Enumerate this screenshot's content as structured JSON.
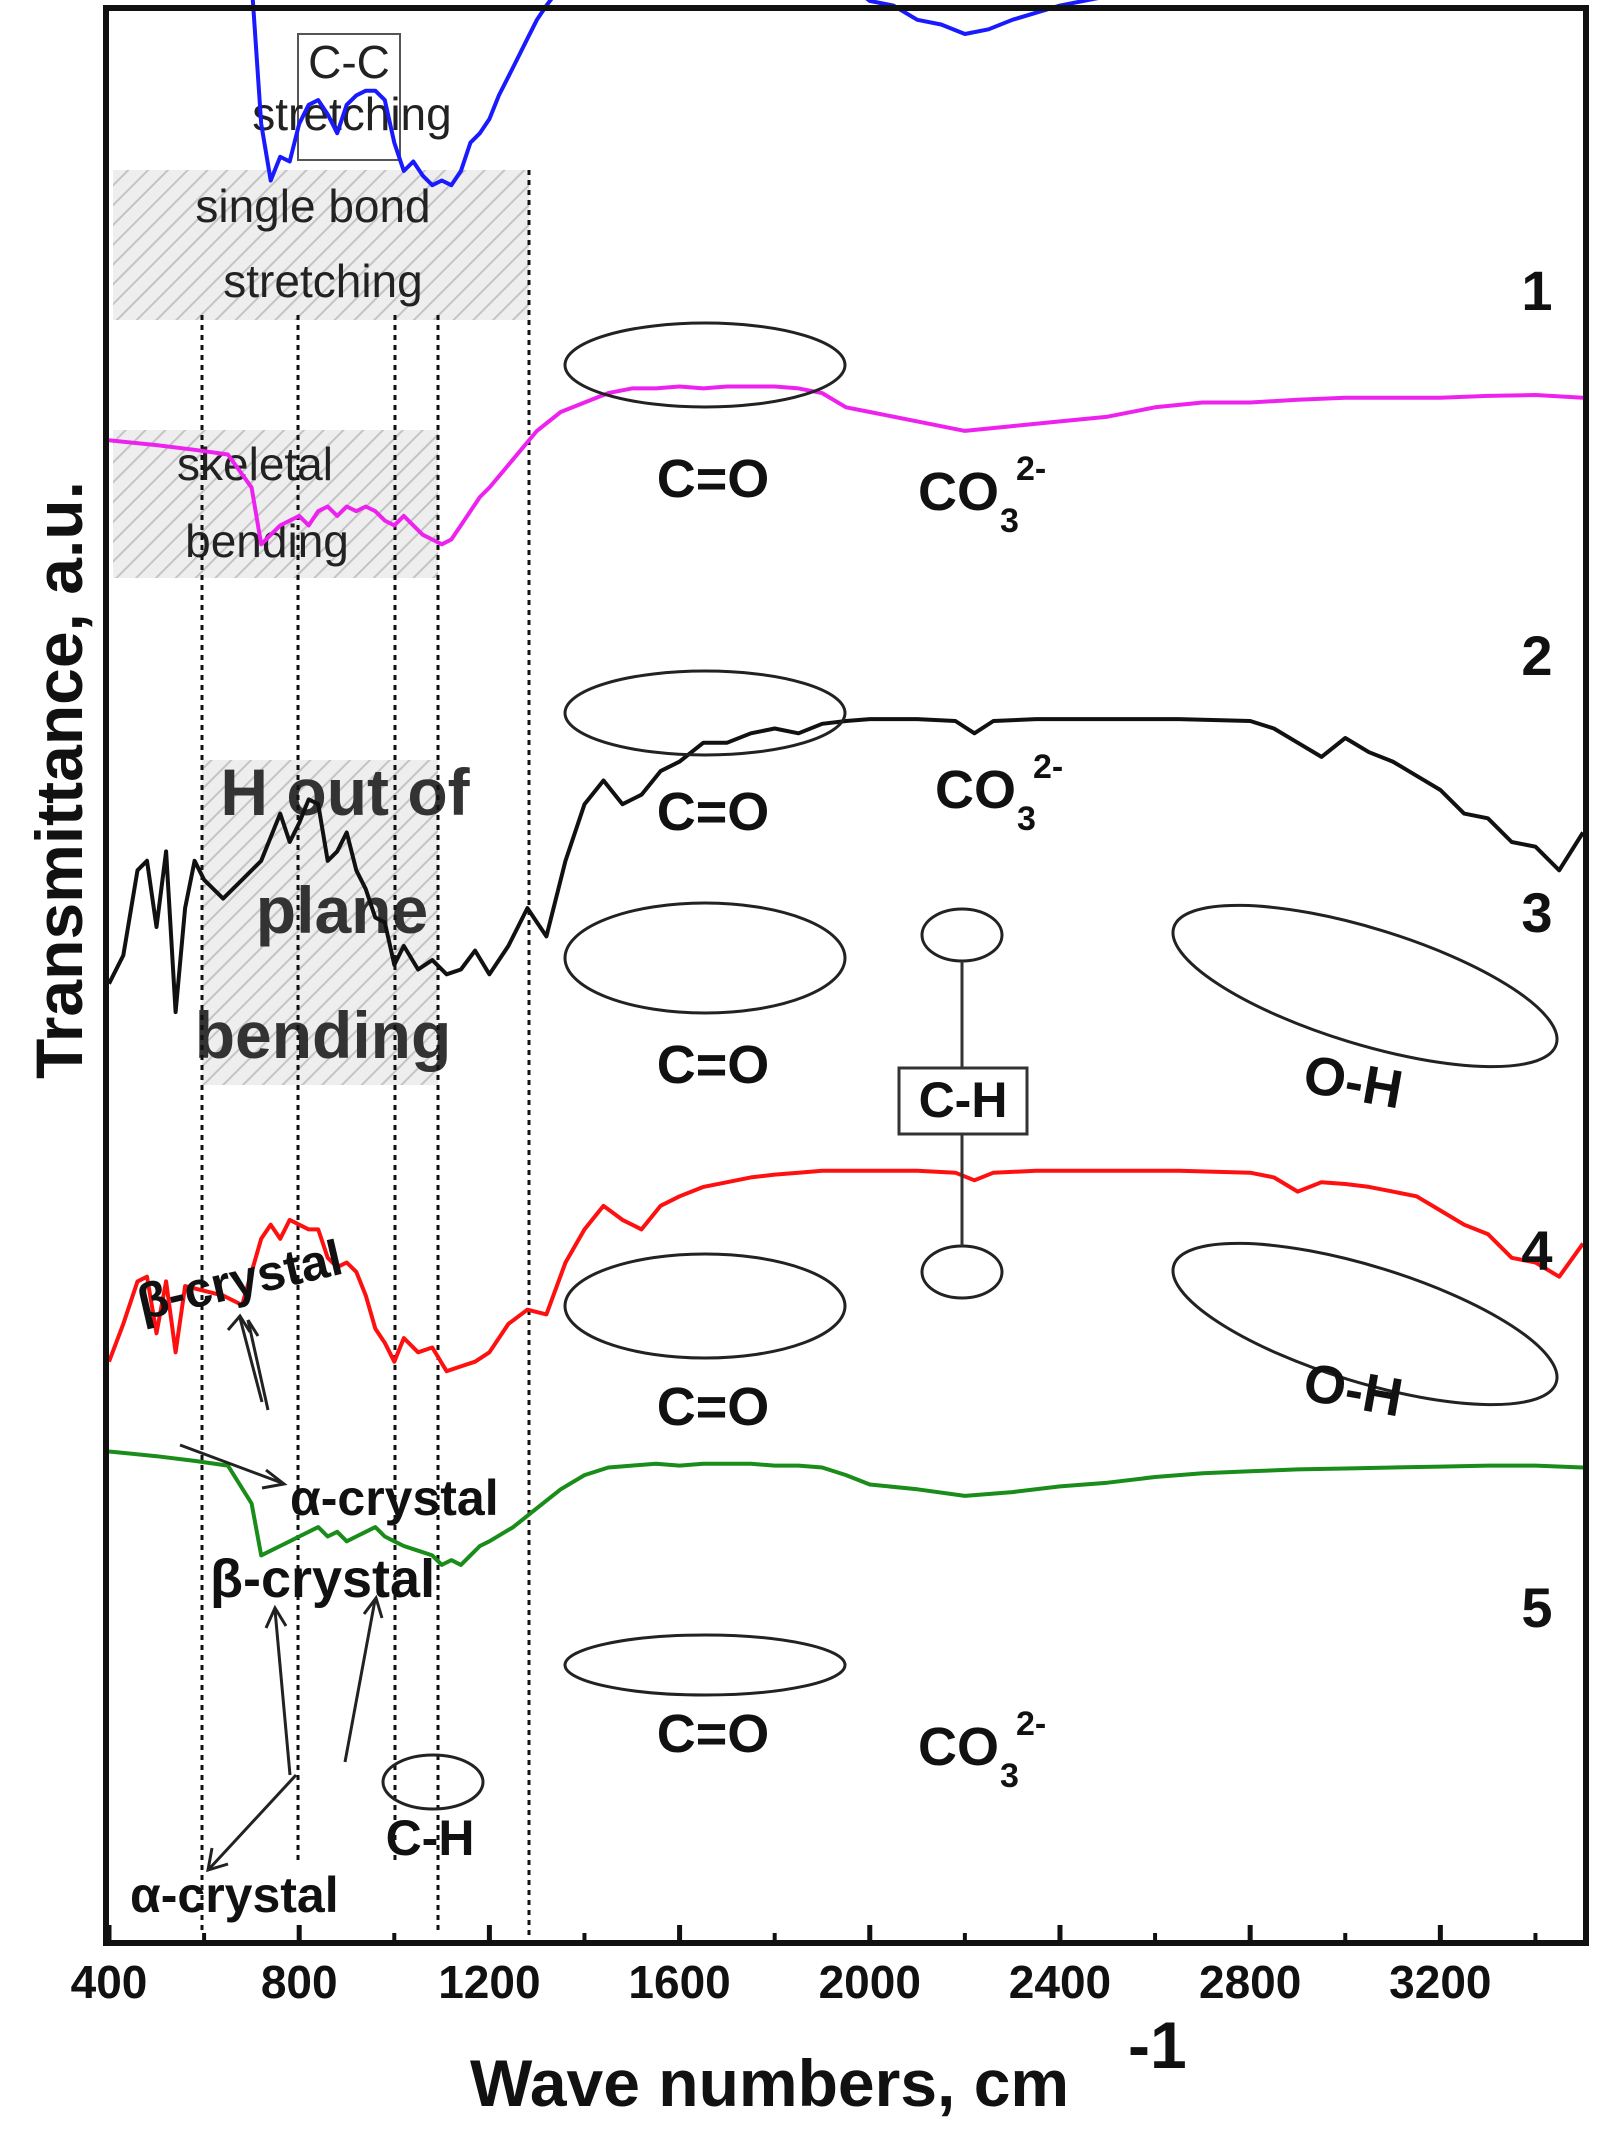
{
  "chart_data": {
    "type": "line",
    "xlabel": "Wave numbers, cm",
    "xlabel_sup": "-1",
    "ylabel": "Transmittance, a.u.",
    "xlim": [
      400,
      3500
    ],
    "x_ticks": [
      400,
      800,
      1200,
      1600,
      2000,
      2400,
      2800,
      3200
    ],
    "y_ticks_shown": false,
    "grid": false,
    "legend": "none",
    "series": [
      {
        "name": "1",
        "color": "#1a1aff",
        "x": [
          400,
          500,
          580,
          650,
          700,
          720,
          740,
          760,
          780,
          800,
          820,
          840,
          860,
          880,
          900,
          920,
          940,
          960,
          980,
          1000,
          1020,
          1040,
          1060,
          1080,
          1100,
          1120,
          1140,
          1160,
          1180,
          1200,
          1220,
          1250,
          1280,
          1300,
          1320,
          1350,
          1380,
          1400,
          1450,
          1500,
          1550,
          1600,
          1650,
          1700,
          1750,
          1800,
          1850,
          1900,
          1950,
          2000,
          2050,
          2100,
          2150,
          2200,
          2250,
          2300,
          2400,
          2500,
          2600,
          2700,
          2800,
          2900,
          3000,
          3100,
          3200,
          3300,
          3400,
          3500
        ],
        "y": [
          4.6,
          4.5,
          4.45,
          4.4,
          4.0,
          2.5,
          1.9,
          2.15,
          2.1,
          2.5,
          2.7,
          2.75,
          2.6,
          2.4,
          2.7,
          2.8,
          2.85,
          2.85,
          2.75,
          2.3,
          2.0,
          2.1,
          1.95,
          1.85,
          1.9,
          1.85,
          2.0,
          2.3,
          2.4,
          2.55,
          2.8,
          3.1,
          3.4,
          3.6,
          3.75,
          3.95,
          4.1,
          4.2,
          4.25,
          4.2,
          4.25,
          4.25,
          4.2,
          4.25,
          4.25,
          4.25,
          4.2,
          4.15,
          4.0,
          3.8,
          3.75,
          3.6,
          3.55,
          3.45,
          3.5,
          3.6,
          3.75,
          3.85,
          4.05,
          4.2,
          4.25,
          4.28,
          4.3,
          4.32,
          4.35,
          4.4,
          4.38,
          4.35
        ]
      },
      {
        "name": "2",
        "color": "#ee22ee",
        "x": [
          400,
          500,
          580,
          650,
          700,
          720,
          740,
          760,
          780,
          800,
          820,
          840,
          860,
          880,
          900,
          920,
          940,
          960,
          980,
          1000,
          1020,
          1040,
          1060,
          1080,
          1100,
          1120,
          1140,
          1160,
          1180,
          1200,
          1250,
          1300,
          1350,
          1400,
          1450,
          1500,
          1550,
          1600,
          1650,
          1700,
          1750,
          1800,
          1850,
          1900,
          1950,
          2000,
          2100,
          2200,
          2300,
          2400,
          2500,
          2600,
          2700,
          2800,
          2900,
          3000,
          3100,
          3200,
          3300,
          3400,
          3500
        ],
        "y": [
          -0.85,
          -0.9,
          -0.95,
          -1.0,
          -1.35,
          -1.95,
          -1.85,
          -1.75,
          -1.7,
          -1.65,
          -1.75,
          -1.6,
          -1.55,
          -1.65,
          -1.55,
          -1.6,
          -1.55,
          -1.6,
          -1.7,
          -1.75,
          -1.65,
          -1.75,
          -1.85,
          -1.9,
          -1.95,
          -1.9,
          -1.75,
          -1.6,
          -1.45,
          -1.35,
          -1.05,
          -0.75,
          -0.55,
          -0.45,
          -0.35,
          -0.3,
          -0.3,
          -0.28,
          -0.3,
          -0.28,
          -0.28,
          -0.28,
          -0.3,
          -0.35,
          -0.5,
          -0.55,
          -0.65,
          -0.75,
          -0.7,
          -0.65,
          -0.6,
          -0.5,
          -0.45,
          -0.45,
          -0.42,
          -0.4,
          -0.4,
          -0.4,
          -0.38,
          -0.37,
          -0.4
        ]
      },
      {
        "name": "3",
        "color": "#111111",
        "x": [
          400,
          430,
          460,
          480,
          500,
          520,
          540,
          560,
          580,
          600,
          640,
          680,
          720,
          760,
          780,
          800,
          820,
          840,
          860,
          880,
          900,
          920,
          940,
          960,
          980,
          1000,
          1020,
          1050,
          1080,
          1110,
          1140,
          1170,
          1200,
          1240,
          1280,
          1320,
          1360,
          1400,
          1440,
          1480,
          1520,
          1560,
          1600,
          1650,
          1700,
          1750,
          1800,
          1850,
          1900,
          1950,
          2000,
          2100,
          2180,
          2220,
          2260,
          2350,
          2500,
          2650,
          2800,
          2850,
          2900,
          2950,
          3000,
          3050,
          3100,
          3150,
          3200,
          3250,
          3300,
          3350,
          3400,
          3450,
          3500
        ],
        "y": [
          -6.6,
          -6.3,
          -5.4,
          -5.3,
          -6.0,
          -5.2,
          -6.9,
          -5.8,
          -5.3,
          -5.5,
          -5.7,
          -5.5,
          -5.3,
          -4.8,
          -5.1,
          -4.9,
          -4.65,
          -4.7,
          -5.3,
          -5.2,
          -5.0,
          -5.4,
          -5.6,
          -5.9,
          -5.95,
          -6.4,
          -6.2,
          -6.45,
          -6.35,
          -6.5,
          -6.45,
          -6.25,
          -6.5,
          -6.2,
          -5.8,
          -6.1,
          -5.3,
          -4.7,
          -4.45,
          -4.7,
          -4.6,
          -4.35,
          -4.25,
          -4.05,
          -4.05,
          -3.95,
          -3.9,
          -3.95,
          -3.85,
          -3.82,
          -3.8,
          -3.8,
          -3.82,
          -3.95,
          -3.82,
          -3.8,
          -3.8,
          -3.8,
          -3.82,
          -3.9,
          -4.05,
          -4.2,
          -4.0,
          -4.15,
          -4.25,
          -4.4,
          -4.55,
          -4.8,
          -4.85,
          -5.1,
          -5.15,
          -5.4,
          -5.0
        ]
      },
      {
        "name": "4",
        "color": "#ff1010",
        "x": [
          400,
          430,
          460,
          480,
          500,
          520,
          540,
          560,
          600,
          640,
          680,
          720,
          740,
          760,
          780,
          800,
          820,
          840,
          860,
          880,
          900,
          920,
          940,
          960,
          980,
          1000,
          1020,
          1050,
          1080,
          1110,
          1140,
          1170,
          1200,
          1240,
          1280,
          1320,
          1360,
          1400,
          1440,
          1480,
          1520,
          1560,
          1600,
          1650,
          1700,
          1750,
          1800,
          1850,
          1900,
          1950,
          2000,
          2100,
          2180,
          2220,
          2260,
          2350,
          2500,
          2650,
          2800,
          2850,
          2900,
          2950,
          3000,
          3050,
          3100,
          3150,
          3200,
          3250,
          3300,
          3350,
          3400,
          3450,
          3500
        ],
        "y": [
          -10.6,
          -10.2,
          -9.75,
          -9.7,
          -10.3,
          -9.75,
          -10.5,
          -9.8,
          -9.85,
          -9.9,
          -10.0,
          -9.3,
          -9.15,
          -9.3,
          -9.1,
          -9.15,
          -9.2,
          -9.2,
          -9.5,
          -9.6,
          -9.55,
          -9.65,
          -9.9,
          -10.25,
          -10.4,
          -10.6,
          -10.35,
          -10.5,
          -10.45,
          -10.7,
          -10.65,
          -10.6,
          -10.5,
          -10.2,
          -10.05,
          -10.1,
          -9.55,
          -9.2,
          -8.95,
          -9.1,
          -9.2,
          -8.95,
          -8.85,
          -8.75,
          -8.7,
          -8.65,
          -8.62,
          -8.6,
          -8.58,
          -8.58,
          -8.58,
          -8.58,
          -8.6,
          -8.68,
          -8.6,
          -8.58,
          -8.58,
          -8.58,
          -8.6,
          -8.65,
          -8.8,
          -8.7,
          -8.72,
          -8.75,
          -8.8,
          -8.85,
          -9.0,
          -9.15,
          -9.25,
          -9.5,
          -9.55,
          -9.7,
          -9.35
        ]
      },
      {
        "name": "5",
        "color": "#1a8c1a",
        "x": [
          400,
          500,
          580,
          650,
          700,
          720,
          740,
          760,
          780,
          800,
          820,
          840,
          860,
          880,
          900,
          920,
          940,
          960,
          980,
          1000,
          1020,
          1050,
          1080,
          1100,
          1120,
          1140,
          1160,
          1180,
          1200,
          1250,
          1300,
          1350,
          1400,
          1450,
          1500,
          1550,
          1600,
          1650,
          1700,
          1750,
          1800,
          1850,
          1900,
          1950,
          2000,
          2100,
          2200,
          2300,
          2400,
          2500,
          2600,
          2700,
          2800,
          2900,
          3000,
          3100,
          3200,
          3300,
          3400,
          3500
        ],
        "y": [
          -11.55,
          -11.6,
          -11.65,
          -11.7,
          -12.1,
          -12.65,
          -12.6,
          -12.55,
          -12.5,
          -12.45,
          -12.4,
          -12.35,
          -12.45,
          -12.4,
          -12.5,
          -12.45,
          -12.4,
          -12.35,
          -12.45,
          -12.5,
          -12.55,
          -12.6,
          -12.65,
          -12.75,
          -12.7,
          -12.75,
          -12.65,
          -12.55,
          -12.5,
          -12.35,
          -12.15,
          -11.95,
          -11.8,
          -11.72,
          -11.7,
          -11.68,
          -11.7,
          -11.68,
          -11.68,
          -11.68,
          -11.7,
          -11.7,
          -11.72,
          -11.8,
          -11.9,
          -11.95,
          -12.02,
          -11.98,
          -11.92,
          -11.88,
          -11.82,
          -11.78,
          -11.76,
          -11.74,
          -11.73,
          -11.72,
          -11.71,
          -11.7,
          -11.7,
          -11.72
        ]
      }
    ],
    "curve_numbers": [
      "1",
      "2",
      "3",
      "4",
      "5"
    ],
    "annotations": {
      "cc_1": "C-C",
      "cc_2": "stretching",
      "single_1": "single bond",
      "single_2": "stretching",
      "skeletal_1": "skeletal",
      "skeletal_2": "bending",
      "hout_1": "H out of",
      "hout_2": "plane",
      "hout_3": "bending",
      "co": "C=O",
      "co3": "CO",
      "co3_sub": "3",
      "co3_sup": "2-",
      "ch": "C-H",
      "oh": "O-H",
      "beta": "β-crystal",
      "alpha": "α-crystal"
    }
  }
}
